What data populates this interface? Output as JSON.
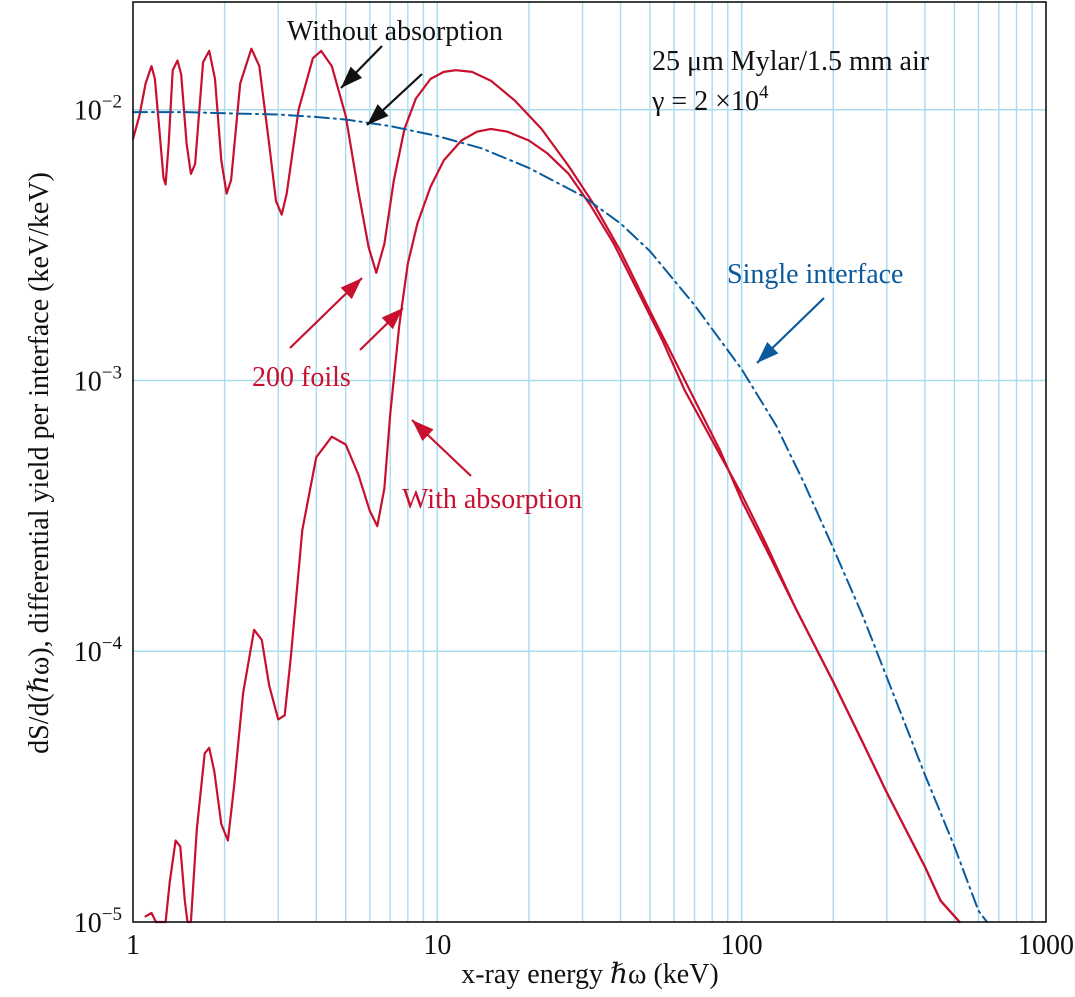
{
  "chart_data": {
    "type": "line",
    "x_scale": "log",
    "y_scale": "log",
    "xlim": [
      1,
      1000
    ],
    "ylim": [
      1e-05,
      0.025
    ],
    "xlabel": "x-ray energy ℏω   (keV)",
    "ylabel": "dS/d(ℏω), differential yield per interface (keV/keV)",
    "x_ticks": [
      "1",
      "10",
      "100",
      "1000"
    ],
    "y_ticks": [
      {
        "base": "10",
        "exp": "−5"
      },
      {
        "base": "10",
        "exp": "−4"
      },
      {
        "base": "10",
        "exp": "−3"
      },
      {
        "base": "10",
        "exp": "−2"
      }
    ],
    "grid": true,
    "legend": "none",
    "colors": {
      "red": "#c8102e",
      "blue": "#0a5a9c",
      "black": "#111111",
      "grid": "#a8dcee"
    },
    "series": [
      {
        "points": [
          [
            1,
            0.0078
          ],
          [
            1.05,
            0.0095
          ],
          [
            1.1,
            0.0125
          ],
          [
            1.15,
            0.0145
          ],
          [
            1.18,
            0.013
          ],
          [
            1.22,
            0.0085
          ],
          [
            1.26,
            0.0056
          ],
          [
            1.28,
            0.0053
          ],
          [
            1.31,
            0.0075
          ],
          [
            1.35,
            0.014
          ],
          [
            1.4,
            0.0152
          ],
          [
            1.44,
            0.0135
          ],
          [
            1.5,
            0.0075
          ],
          [
            1.55,
            0.0058
          ],
          [
            1.6,
            0.0063
          ],
          [
            1.7,
            0.015
          ],
          [
            1.78,
            0.0165
          ],
          [
            1.86,
            0.013
          ],
          [
            1.95,
            0.0065
          ],
          [
            2.03,
            0.0049
          ],
          [
            2.1,
            0.0055
          ],
          [
            2.25,
            0.0125
          ],
          [
            2.45,
            0.0168
          ],
          [
            2.6,
            0.0145
          ],
          [
            2.8,
            0.0075
          ],
          [
            2.95,
            0.0046
          ],
          [
            3.08,
            0.0041
          ],
          [
            3.2,
            0.0049
          ],
          [
            3.5,
            0.01
          ],
          [
            3.9,
            0.0155
          ],
          [
            4.15,
            0.0165
          ],
          [
            4.5,
            0.0145
          ],
          [
            5,
            0.0095
          ],
          [
            5.5,
            0.005
          ],
          [
            5.95,
            0.0031
          ],
          [
            6.3,
            0.0025
          ],
          [
            6.7,
            0.0032
          ],
          [
            7.2,
            0.0055
          ],
          [
            7.8,
            0.0085
          ],
          [
            8.5,
            0.011
          ],
          [
            9.5,
            0.013
          ],
          [
            10.5,
            0.0138
          ],
          [
            11.5,
            0.014
          ],
          [
            13,
            0.0138
          ],
          [
            15,
            0.0128
          ],
          [
            18,
            0.0108
          ],
          [
            22,
            0.0085
          ],
          [
            27,
            0.0062
          ],
          [
            33,
            0.0044
          ],
          [
            40,
            0.003
          ],
          [
            50,
            0.0018
          ],
          [
            60,
            0.0012
          ],
          [
            70,
            0.00085
          ],
          [
            85,
            0.00055
          ],
          [
            100,
            0.00036
          ],
          [
            120,
            0.00024
          ],
          [
            150,
            0.000145
          ],
          [
            200,
            7.7e-05
          ],
          [
            250,
            4.6e-05
          ],
          [
            300,
            3e-05
          ],
          [
            400,
            1.6e-05
          ],
          [
            450,
            1.2e-05
          ],
          [
            520,
            1e-05
          ]
        ]
      },
      {
        "points": [
          [
            1.1,
            1.05e-05
          ],
          [
            1.15,
            1.08e-05
          ],
          [
            1.19,
            1e-05
          ],
          [
            1.28,
            1e-05
          ],
          [
            1.32,
            1.4e-05
          ],
          [
            1.38,
            2e-05
          ],
          [
            1.43,
            1.9e-05
          ],
          [
            1.48,
            1.2e-05
          ],
          [
            1.51,
            1e-05
          ],
          [
            1.55,
            1e-05
          ],
          [
            1.62,
            2.2e-05
          ],
          [
            1.72,
            4.2e-05
          ],
          [
            1.78,
            4.4e-05
          ],
          [
            1.85,
            3.6e-05
          ],
          [
            1.95,
            2.3e-05
          ],
          [
            2.05,
            2e-05
          ],
          [
            2.15,
            3.2e-05
          ],
          [
            2.3,
            7e-05
          ],
          [
            2.5,
            0.00012
          ],
          [
            2.65,
            0.00011
          ],
          [
            2.8,
            7.5e-05
          ],
          [
            3,
            5.6e-05
          ],
          [
            3.15,
            5.8e-05
          ],
          [
            3.3,
            9.5e-05
          ],
          [
            3.6,
            0.00028
          ],
          [
            4,
            0.00052
          ],
          [
            4.5,
            0.00062
          ],
          [
            5,
            0.00058
          ],
          [
            5.5,
            0.00045
          ],
          [
            6,
            0.00033
          ],
          [
            6.35,
            0.00029
          ],
          [
            6.7,
            0.0004
          ],
          [
            7,
            0.00075
          ],
          [
            7.5,
            0.0016
          ],
          [
            8,
            0.0027
          ],
          [
            8.6,
            0.0038
          ],
          [
            9.5,
            0.0052
          ],
          [
            10.5,
            0.0065
          ],
          [
            12,
            0.0077
          ],
          [
            13.5,
            0.0083
          ],
          [
            15,
            0.0085
          ],
          [
            17,
            0.0083
          ],
          [
            20,
            0.0077
          ],
          [
            23,
            0.0069
          ],
          [
            27,
            0.0058
          ],
          [
            32,
            0.0044
          ],
          [
            38,
            0.0032
          ],
          [
            45,
            0.0022
          ],
          [
            55,
            0.0014
          ],
          [
            65,
            0.00092
          ],
          [
            80,
            0.0006
          ],
          [
            100,
            0.00038
          ],
          [
            120,
            0.00025
          ],
          [
            150,
            0.000145
          ],
          [
            200,
            7.7e-05
          ],
          [
            250,
            4.6e-05
          ],
          [
            300,
            3e-05
          ],
          [
            400,
            1.6e-05
          ],
          [
            450,
            1.2e-05
          ],
          [
            520,
            1e-05
          ]
        ]
      },
      {
        "style": "dash-dot",
        "points": [
          [
            1,
            0.0098
          ],
          [
            1.5,
            0.0098
          ],
          [
            2,
            0.0097
          ],
          [
            3,
            0.0096
          ],
          [
            4,
            0.0094
          ],
          [
            5,
            0.0092
          ],
          [
            7,
            0.0087
          ],
          [
            10,
            0.008
          ],
          [
            14,
            0.0072
          ],
          [
            20,
            0.0061
          ],
          [
            30,
            0.0048
          ],
          [
            40,
            0.0038
          ],
          [
            50,
            0.003
          ],
          [
            70,
            0.0019
          ],
          [
            100,
            0.0011
          ],
          [
            130,
            0.00068
          ],
          [
            160,
            0.00042
          ],
          [
            200,
            0.00024
          ],
          [
            250,
            0.000135
          ],
          [
            300,
            8e-05
          ],
          [
            400,
            3.5e-05
          ],
          [
            500,
            1.9e-05
          ],
          [
            600,
            1.1e-05
          ],
          [
            640,
            1e-05
          ]
        ]
      }
    ],
    "annotations": [
      {
        "text": "Without absorption",
        "color": "#111111"
      },
      {
        "text": "25 μm Mylar/1.5 mm air",
        "color": "#111111"
      },
      {
        "text_prefix": "γ = 2 ×10",
        "sup": "4",
        "color": "#111111"
      },
      {
        "text": "Single interface",
        "color": "#0a5a9c"
      },
      {
        "text": "200 foils",
        "color": "#c8102e"
      },
      {
        "text": "With absorption",
        "color": "#c8102e"
      }
    ]
  }
}
